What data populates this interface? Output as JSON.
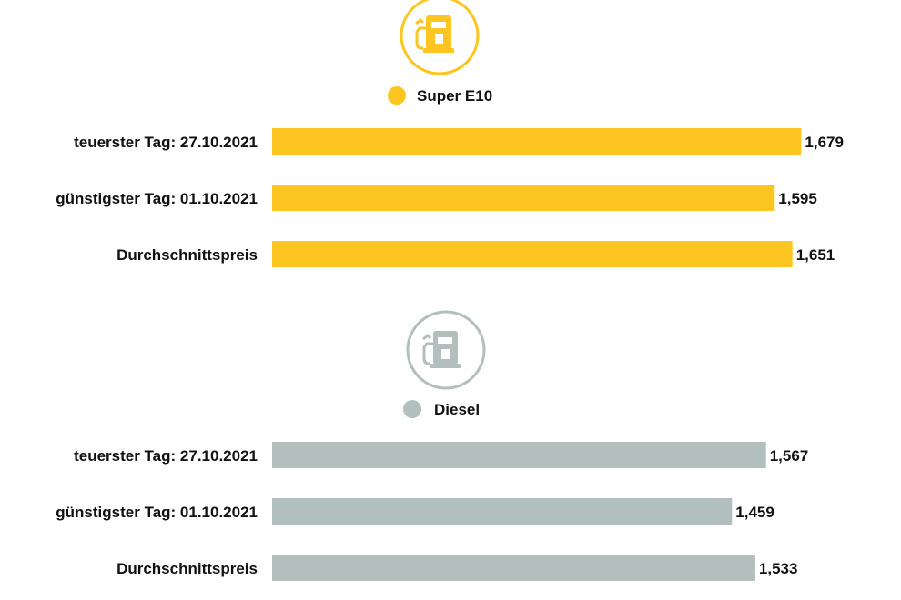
{
  "chart_data": [
    {
      "type": "bar",
      "orientation": "horizontal",
      "title": "",
      "xlabel": "",
      "ylabel": "",
      "categories": [
        "teuerster Tag: 27.10.2021",
        "günstigster Tag: 01.10.2021",
        "Durchschnittspreis"
      ],
      "series": [
        {
          "name": "Super E10",
          "values": [
            1.679,
            1.595,
            1.651
          ],
          "labels": [
            "1,679",
            "1,595",
            "1,651"
          ],
          "color": "#fcc521"
        }
      ],
      "icon": "fuel-pump-icon",
      "icon_color": "#fcc521",
      "grid": false,
      "legend": "above"
    },
    {
      "type": "bar",
      "orientation": "horizontal",
      "title": "",
      "xlabel": "",
      "ylabel": "",
      "categories": [
        "teuerster Tag: 27.10.2021",
        "günstigster Tag: 01.10.2021",
        "Durchschnittspreis"
      ],
      "series": [
        {
          "name": "Diesel",
          "values": [
            1.567,
            1.459,
            1.533
          ],
          "labels": [
            "1,567",
            "1,459",
            "1,533"
          ],
          "color": "#b3bfbd"
        }
      ],
      "icon": "fuel-pump-icon",
      "icon_color": "#b3bfbd",
      "grid": false,
      "legend": "above"
    }
  ]
}
